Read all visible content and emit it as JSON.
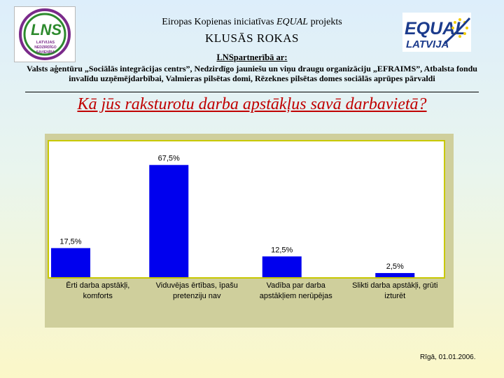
{
  "header": {
    "title_prefix": "Eiropas Kopienas iniciatīvas ",
    "title_italic": "EQUAL",
    "title_suffix": " projekts",
    "project_name": "KLUSĀS ROKAS",
    "partners_heading": "LNSpartnerībā ar:",
    "partners_line1": "Valsts aģentūru „Sociālās integrācijas centrs”, Nedzirdīgo jauniešu un viņu draugu organizāciju „EFRAIMS”, Atbalsta fondu",
    "partners_line2": "invalīdu uzņēmējdarbībai, Valmieras pilsētas domi, Rēzeknes pilsētas domes sociālās aprūpes pārvaldi"
  },
  "logos": {
    "lns": {
      "main": "LNS",
      "line1": "LATVIJAS",
      "line2": "NEDZIRDĪGO",
      "line3": "SAVIENĪBA"
    },
    "equal": {
      "main": "EQUAL",
      "sub": "LATVIJA"
    }
  },
  "question": "Kā jūs raksturotu darba apstākļus savā darbavietā?",
  "chart_data": {
    "type": "bar",
    "categories": [
      [
        "Ērti darba apstākļi,",
        "komforts"
      ],
      [
        "Viduvējas ērtības, īpašu",
        "pretenziju nav"
      ],
      [
        "Vadība par darba",
        "apstākļiem nerūpējas"
      ],
      [
        "Slikti darba apstākļi, grūti",
        "izturēt"
      ]
    ],
    "values": [
      17.5,
      67.5,
      12.5,
      2.5
    ],
    "value_labels": [
      "17,5%",
      "67,5%",
      "12,5%",
      "2,5%"
    ],
    "ylim": [
      0,
      80
    ],
    "bar_color": "#0000ee",
    "plot_bg": "#ffffff",
    "border_color": "#c8c800",
    "grid": false,
    "legend": "none"
  },
  "footer": {
    "date": "Rīgā, 01.01.2006."
  },
  "colors": {
    "question": "#c00000",
    "lns_green": "#2d8a2d",
    "lns_purple": "#7a2a8a",
    "equal_blue": "#1b3b8c",
    "equal_yellow": "#f2cc00"
  }
}
